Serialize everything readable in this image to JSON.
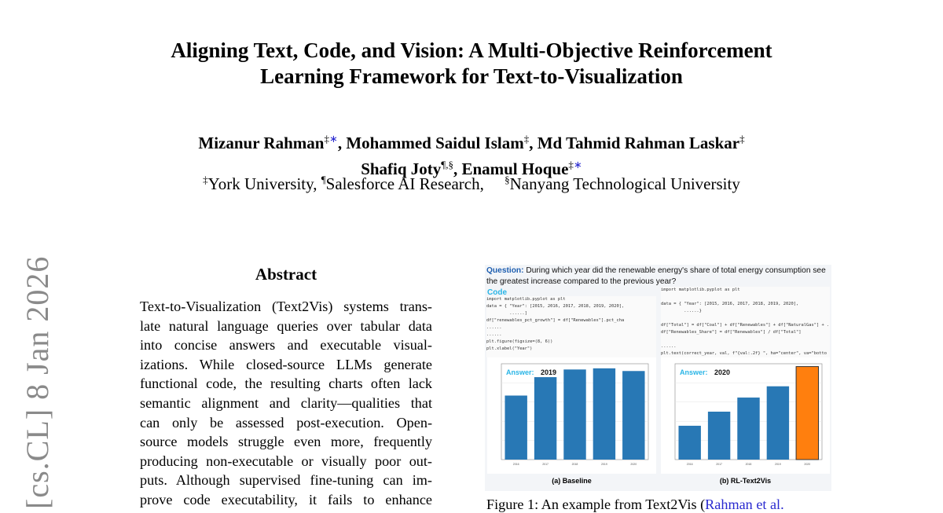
{
  "paper": {
    "title_line1": "Aligning Text, Code, and Vision: A Multi-Objective Reinforcement",
    "title_line2": "Learning Framework for Text-to-Visualization",
    "authors_line1": [
      {
        "name": "Mizanur Rahman",
        "marks": "‡",
        "star": "∗"
      },
      {
        "name": "Mohammed Saidul Islam",
        "marks": "‡",
        "star": ""
      },
      {
        "name": "Md Tahmid Rahman Laskar",
        "marks": "‡",
        "star": ""
      }
    ],
    "authors_line2": [
      {
        "name": "Shafiq Joty",
        "marks": "¶,§",
        "star": ""
      },
      {
        "name": "Enamul Hoque",
        "marks": "‡",
        "star": "∗"
      }
    ],
    "affiliations": [
      {
        "mark": "‡",
        "name": "York University,"
      },
      {
        "mark": "¶",
        "name": "Salesforce AI Research,"
      },
      {
        "mark": "§",
        "name": "Nanyang Technological University"
      }
    ],
    "arxiv_stamp": "[cs.CL]  8 Jan 2026",
    "abstract_heading": "Abstract",
    "abstract_lines": [
      "Text-to-Visualization (Text2Vis) systems trans-",
      "late natural language queries over tabular data",
      "into concise answers and executable visual-",
      "izations. While closed-source LLMs generate",
      "functional code, the resulting charts often lack",
      "semantic alignment and clarity—qualities that",
      "can only be assessed post-execution. Open-",
      "source models struggle even more, frequently",
      "producing non-executable or visually poor out-",
      "puts. Although supervised fine-tuning can im-",
      "prove code executability, it fails to enhance"
    ],
    "figure": {
      "question_label": "Question:",
      "question_text": "During which year did the renewable energy's share of total energy consumption see the greatest increase compared to the previous year?",
      "code_label": "Code",
      "code_left": "import matplotlib.pyplot as plt\ndata = { \"Year\": [2015, 2016, 2017, 2018, 2019, 2020],\n         ......]\ndf[\"renewables_pct_growth\"] = df[\"Renewables\"].pct_cha\n......\n......\nplt.figure(figsize=(8, 6))\nplt.xlabel(\"Year\")",
      "code_right": "import matplotlib.pyplot as plt\n\ndata = { \"Year\": [2015, 2016, 2017, 2018, 2019, 2020],\n         ......}\n\ndf[\"Total\"] = df[\"Coal\"] + df[\"Renewables\"] + df[\"NaturalGas\"] + ...\ndf[\"Renewables_Share\"] = df[\"Renewables\"] / df[\"Total\"]\n\n......\nplt.text(correct_year, val, f\"{val:.2f} \", ha=\"center\", va=\"botto",
      "panels": [
        {
          "answer_label": "Answer:",
          "answer": "2019",
          "caption": "(a) Baseline",
          "years": [
            "2016",
            "2017",
            "2018",
            "2019",
            "2020"
          ],
          "values": [
            16.7,
            21.5,
            23.5,
            23.8,
            23.1
          ],
          "ymax": 25,
          "colors": [
            "#2878b5",
            "#2878b5",
            "#2878b5",
            "#2878b5",
            "#2878b5"
          ]
        },
        {
          "answer_label": "Answer:",
          "answer": "2020",
          "caption": "(b) RL-Text2Vis",
          "years": [
            "2016",
            "2017",
            "2018",
            "2019",
            "2020"
          ],
          "values": [
            0.6,
            0.85,
            1.1,
            1.3,
            1.65
          ],
          "ymax": 1.7,
          "colors": [
            "#2878b5",
            "#2878b5",
            "#2878b5",
            "#2878b5",
            "#ff7f0e"
          ]
        }
      ]
    },
    "caption_text": "Figure 1: An example from Text2Vis (",
    "caption_link": "Rahman et al."
  }
}
